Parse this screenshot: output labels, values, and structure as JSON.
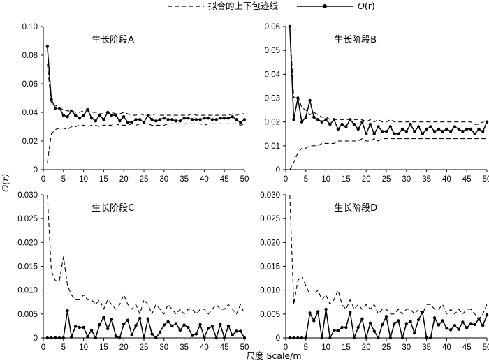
{
  "legend": {
    "envelope_label": "拟合的上下包迹线",
    "observed_label": "O(r)",
    "observed_label_main": "O",
    "observed_label_arg": "(r)"
  },
  "xlabel": "尺度 Scale/m",
  "ylabel": "O(r)",
  "chart_data": [
    {
      "type": "line",
      "title": "生长阶段A",
      "xlim": [
        0,
        50
      ],
      "ylim": [
        0,
        0.1
      ],
      "xticks": [
        "0",
        "5",
        "10",
        "15",
        "20",
        "25",
        "30",
        "35",
        "40",
        "45",
        "50"
      ],
      "yticks": [
        "0",
        "0.02",
        "0.04",
        "0.06",
        "0.08",
        "0.10"
      ],
      "x": [
        1,
        2,
        3,
        4,
        5,
        6,
        7,
        8,
        9,
        10,
        11,
        12,
        13,
        14,
        15,
        16,
        17,
        18,
        19,
        20,
        21,
        22,
        23,
        24,
        25,
        26,
        27,
        28,
        29,
        30,
        31,
        32,
        33,
        34,
        35,
        36,
        37,
        38,
        39,
        40,
        41,
        42,
        43,
        44,
        45,
        46,
        47,
        48,
        49,
        50
      ],
      "series": [
        {
          "name": "O(r)",
          "style": "solid-marker",
          "values": [
            0.086,
            0.049,
            0.043,
            0.043,
            0.038,
            0.037,
            0.041,
            0.038,
            0.036,
            0.038,
            0.042,
            0.036,
            0.034,
            0.038,
            0.035,
            0.04,
            0.038,
            0.038,
            0.034,
            0.037,
            0.033,
            0.033,
            0.035,
            0.035,
            0.033,
            0.038,
            0.035,
            0.034,
            0.035,
            0.036,
            0.035,
            0.035,
            0.034,
            0.034,
            0.036,
            0.036,
            0.035,
            0.035,
            0.035,
            0.036,
            0.036,
            0.035,
            0.035,
            0.036,
            0.036,
            0.036,
            0.037,
            0.035,
            0.033,
            0.035
          ]
        },
        {
          "name": "upper",
          "style": "dashed",
          "values": [
            0.074,
            0.046,
            0.045,
            0.043,
            0.042,
            0.041,
            0.041,
            0.04,
            0.04,
            0.041,
            0.041,
            0.04,
            0.04,
            0.039,
            0.039,
            0.04,
            0.04,
            0.039,
            0.039,
            0.04,
            0.039,
            0.038,
            0.038,
            0.039,
            0.038,
            0.038,
            0.038,
            0.039,
            0.038,
            0.038,
            0.038,
            0.038,
            0.038,
            0.038,
            0.038,
            0.038,
            0.039,
            0.038,
            0.038,
            0.038,
            0.038,
            0.038,
            0.038,
            0.038,
            0.038,
            0.038,
            0.039,
            0.038,
            0.039,
            0.039
          ]
        },
        {
          "name": "lower",
          "style": "dashed",
          "values": [
            0.005,
            0.025,
            0.028,
            0.029,
            0.029,
            0.028,
            0.03,
            0.03,
            0.031,
            0.031,
            0.03,
            0.031,
            0.031,
            0.03,
            0.031,
            0.031,
            0.031,
            0.032,
            0.031,
            0.031,
            0.031,
            0.032,
            0.031,
            0.032,
            0.032,
            0.032,
            0.031,
            0.031,
            0.031,
            0.031,
            0.032,
            0.032,
            0.032,
            0.032,
            0.032,
            0.032,
            0.032,
            0.032,
            0.032,
            0.031,
            0.032,
            0.032,
            0.032,
            0.032,
            0.032,
            0.032,
            0.032,
            0.032,
            0.031,
            0.032
          ]
        }
      ]
    },
    {
      "type": "line",
      "title": "生长阶段B",
      "xlim": [
        0,
        50
      ],
      "ylim": [
        0,
        0.06
      ],
      "xticks": [
        "0",
        "5",
        "10",
        "15",
        "20",
        "25",
        "30",
        "35",
        "40",
        "45",
        "50"
      ],
      "yticks": [
        "0",
        "0.01",
        "0.02",
        "0.03",
        "0.04",
        "0.05",
        "0.06"
      ],
      "x": [
        1,
        2,
        3,
        4,
        5,
        6,
        7,
        8,
        9,
        10,
        11,
        12,
        13,
        14,
        15,
        16,
        17,
        18,
        19,
        20,
        21,
        22,
        23,
        24,
        25,
        26,
        27,
        28,
        29,
        30,
        31,
        32,
        33,
        34,
        35,
        36,
        37,
        38,
        39,
        40,
        41,
        42,
        43,
        44,
        45,
        46,
        47,
        48,
        49,
        50
      ],
      "series": [
        {
          "name": "O(r)",
          "style": "solid-marker",
          "values": [
            0.06,
            0.021,
            0.03,
            0.02,
            0.022,
            0.029,
            0.022,
            0.021,
            0.02,
            0.021,
            0.019,
            0.021,
            0.017,
            0.019,
            0.018,
            0.021,
            0.019,
            0.017,
            0.02,
            0.015,
            0.019,
            0.015,
            0.018,
            0.016,
            0.016,
            0.018,
            0.015,
            0.015,
            0.017,
            0.016,
            0.019,
            0.016,
            0.018,
            0.015,
            0.017,
            0.018,
            0.016,
            0.017,
            0.016,
            0.017,
            0.016,
            0.018,
            0.017,
            0.016,
            0.017,
            0.017,
            0.015,
            0.017,
            0.016,
            0.02
          ]
        },
        {
          "name": "upper",
          "style": "dashed",
          "values": [
            0.06,
            0.03,
            0.031,
            0.026,
            0.025,
            0.023,
            0.024,
            0.023,
            0.022,
            0.022,
            0.021,
            0.021,
            0.021,
            0.021,
            0.021,
            0.021,
            0.021,
            0.021,
            0.021,
            0.02,
            0.021,
            0.02,
            0.021,
            0.02,
            0.02,
            0.021,
            0.02,
            0.02,
            0.02,
            0.02,
            0.02,
            0.02,
            0.02,
            0.02,
            0.02,
            0.02,
            0.02,
            0.02,
            0.02,
            0.02,
            0.02,
            0.02,
            0.02,
            0.02,
            0.02,
            0.02,
            0.019,
            0.019,
            0.02,
            0.021
          ]
        },
        {
          "name": "lower",
          "style": "dashed",
          "values": [
            0.0,
            0.003,
            0.007,
            0.009,
            0.009,
            0.01,
            0.01,
            0.01,
            0.011,
            0.011,
            0.011,
            0.011,
            0.012,
            0.012,
            0.012,
            0.012,
            0.012,
            0.012,
            0.013,
            0.012,
            0.012,
            0.013,
            0.012,
            0.013,
            0.013,
            0.013,
            0.013,
            0.013,
            0.013,
            0.013,
            0.013,
            0.013,
            0.013,
            0.013,
            0.013,
            0.013,
            0.013,
            0.013,
            0.013,
            0.013,
            0.013,
            0.013,
            0.013,
            0.013,
            0.013,
            0.013,
            0.013,
            0.013,
            0.013,
            0.013
          ]
        }
      ]
    },
    {
      "type": "line",
      "title": "生长阶段C",
      "xlim": [
        0,
        50
      ],
      "ylim": [
        0,
        0.03
      ],
      "xticks": [
        "0",
        "5",
        "10",
        "15",
        "20",
        "25",
        "30",
        "35",
        "40",
        "45",
        "50"
      ],
      "yticks": [
        "0",
        "0.005",
        "0.010",
        "0.015",
        "0.020",
        "0.025",
        "0.030"
      ],
      "x": [
        1,
        2,
        3,
        4,
        5,
        6,
        7,
        8,
        9,
        10,
        11,
        12,
        13,
        14,
        15,
        16,
        17,
        18,
        19,
        20,
        21,
        22,
        23,
        24,
        25,
        26,
        27,
        28,
        29,
        30,
        31,
        32,
        33,
        34,
        35,
        36,
        37,
        38,
        39,
        40,
        41,
        42,
        43,
        44,
        45,
        46,
        47,
        48,
        49,
        50
      ],
      "series": [
        {
          "name": "O(r)",
          "style": "solid-marker",
          "values": [
            0,
            0,
            0,
            0,
            0,
            0.0057,
            0.0002,
            0.0024,
            0.0022,
            0.0022,
            0.0003,
            0.0016,
            0.0,
            0.0028,
            0.0043,
            0.0019,
            0.0039,
            0.0004,
            0.0,
            0.0029,
            0.0037,
            0.0006,
            0.0026,
            0.0041,
            0.0,
            0.004,
            0.0008,
            0.0,
            0.0012,
            0.0027,
            0.0034,
            0.0025,
            0.003,
            0.0016,
            0.0027,
            0.0022,
            0.0005,
            0.0008,
            0.0028,
            0.0001,
            0.002,
            0.0024,
            0.0,
            0.0028,
            0.0,
            0.0025,
            0.0006,
            0.0014,
            0.0014,
            0.0
          ]
        },
        {
          "name": "upper",
          "style": "dashed",
          "values": [
            0.03,
            0.014,
            0.012,
            0.012,
            0.017,
            0.011,
            0.009,
            0.008,
            0.008,
            0.009,
            0.008,
            0.008,
            0.007,
            0.008,
            0.006,
            0.008,
            0.007,
            0.006,
            0.007,
            0.009,
            0.007,
            0.006,
            0.007,
            0.005,
            0.008,
            0.007,
            0.005,
            0.007,
            0.006,
            0.005,
            0.007,
            0.006,
            0.005,
            0.006,
            0.005,
            0.006,
            0.006,
            0.005,
            0.006,
            0.006,
            0.005,
            0.006,
            0.007,
            0.006,
            0.006,
            0.007,
            0.006,
            0.005,
            0.007,
            0.005
          ]
        },
        {
          "name": "lower",
          "style": "dashed",
          "values": [
            0,
            0,
            0,
            0,
            0,
            0,
            0,
            0,
            0,
            0,
            0,
            0,
            0,
            0,
            0,
            0,
            0,
            0,
            0,
            0,
            0,
            0,
            0,
            0,
            0,
            0,
            0,
            0,
            0,
            0,
            0,
            0,
            0,
            0,
            0,
            0,
            0,
            0,
            0,
            0,
            0,
            0,
            0,
            0,
            0,
            0,
            0,
            0,
            0,
            0
          ]
        }
      ]
    },
    {
      "type": "line",
      "title": "生长阶段D",
      "xlim": [
        0,
        50
      ],
      "ylim": [
        0,
        0.03
      ],
      "xticks": [
        "0",
        "5",
        "10",
        "15",
        "20",
        "25",
        "30",
        "35",
        "40",
        "45",
        "50"
      ],
      "yticks": [
        "0",
        "0.005",
        "0.010",
        "0.015",
        "0.020",
        "0.025",
        "0.030"
      ],
      "x": [
        1,
        2,
        3,
        4,
        5,
        6,
        7,
        8,
        9,
        10,
        11,
        12,
        13,
        14,
        15,
        16,
        17,
        18,
        19,
        20,
        21,
        22,
        23,
        24,
        25,
        26,
        27,
        28,
        29,
        30,
        31,
        32,
        33,
        34,
        35,
        36,
        37,
        38,
        39,
        40,
        41,
        42,
        43,
        44,
        45,
        46,
        47,
        48,
        49,
        50
      ],
      "series": [
        {
          "name": "O(r)",
          "style": "solid-marker",
          "values": [
            0,
            0,
            0,
            0,
            0,
            0.0052,
            0.0036,
            0.0055,
            0.0,
            0.006,
            0.0,
            0.0016,
            0.0015,
            0.0022,
            0.0022,
            0.0054,
            0.0,
            0.0022,
            0.004,
            0.0,
            0.0031,
            0.0014,
            0.0,
            0.0028,
            0.0045,
            0.0,
            0.003,
            0.0036,
            0.0,
            0.003,
            0.0034,
            0.001,
            0.0038,
            0.0054,
            0.0,
            0.0,
            0.0042,
            0.0027,
            0.0036,
            0.002,
            0.0017,
            0.0026,
            0.0018,
            0.0033,
            0.0021,
            0.003,
            0.0028,
            0.004,
            0.0026,
            0.0048
          ]
        },
        {
          "name": "upper",
          "style": "dashed",
          "values": [
            0.03,
            0.007,
            0.012,
            0.013,
            0.011,
            0.009,
            0.009,
            0.01,
            0.008,
            0.009,
            0.007,
            0.008,
            0.01,
            0.007,
            0.006,
            0.008,
            0.006,
            0.007,
            0.006,
            0.007,
            0.006,
            0.007,
            0.005,
            0.006,
            0.006,
            0.005,
            0.005,
            0.006,
            0.005,
            0.006,
            0.006,
            0.005,
            0.006,
            0.005,
            0.007,
            0.007,
            0.006,
            0.006,
            0.007,
            0.005,
            0.006,
            0.005,
            0.006,
            0.005,
            0.006,
            0.006,
            0.005,
            0.004,
            0.005,
            0.007
          ]
        },
        {
          "name": "lower",
          "style": "dashed",
          "values": [
            0,
            0,
            0,
            0,
            0,
            0,
            0,
            0,
            0,
            0,
            0,
            0,
            0,
            0,
            0,
            0,
            0,
            0,
            0,
            0,
            0,
            0,
            0,
            0,
            0,
            0,
            0,
            0,
            0,
            0,
            0,
            0,
            0,
            0,
            0,
            0,
            0,
            0,
            0,
            0,
            0,
            0,
            0,
            0,
            0,
            0,
            0,
            0,
            0,
            0
          ]
        }
      ]
    }
  ]
}
